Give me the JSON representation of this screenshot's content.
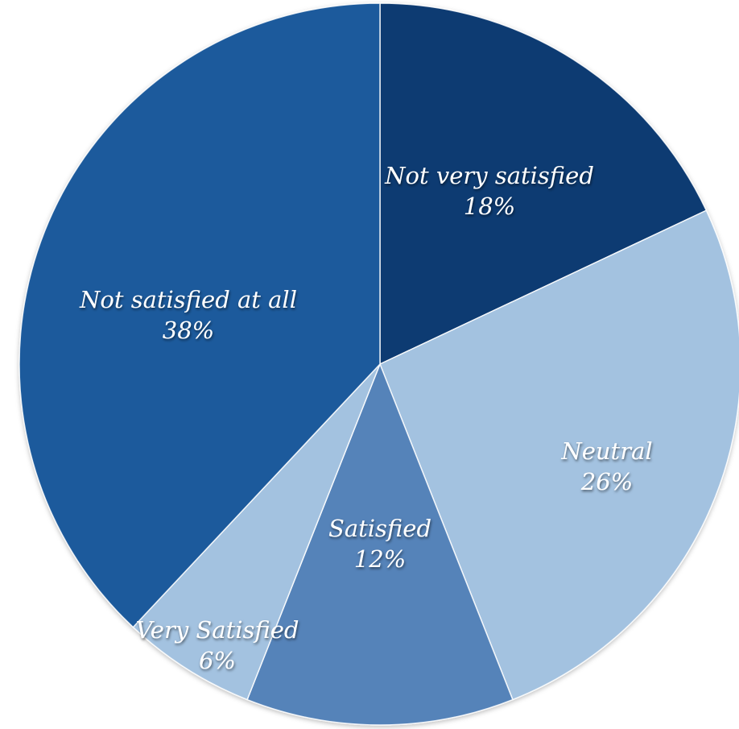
{
  "chart_data": {
    "type": "pie",
    "title": "",
    "start_angle_deg": 0,
    "direction": "clockwise",
    "slices": [
      {
        "label": "Not very satisfied",
        "value": 18,
        "value_label": "18%",
        "color": "#0d3a72"
      },
      {
        "label": "Neutral",
        "value": 26,
        "value_label": "26%",
        "color": "#a3c2e0"
      },
      {
        "label": "Satisfied",
        "value": 12,
        "value_label": "12%",
        "color": "#5583b9"
      },
      {
        "label": "Very Satisfied",
        "value": 6,
        "value_label": "6%",
        "color": "#a3c2e0"
      },
      {
        "label": "Not satisfied at all",
        "value": 38,
        "value_label": "38%",
        "color": "#1a5a9c"
      }
    ]
  }
}
